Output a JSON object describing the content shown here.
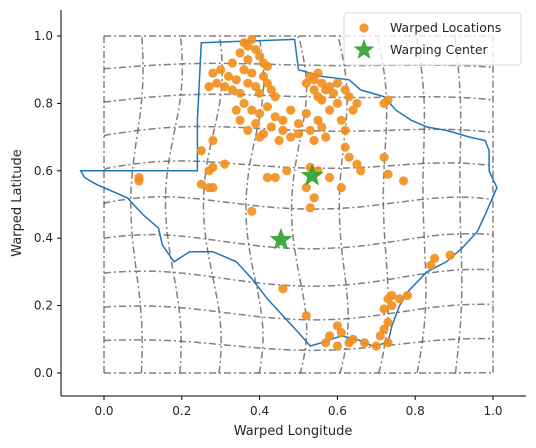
{
  "chart_data": {
    "type": "scatter",
    "title": "",
    "xlabel": "Warped Longitude",
    "ylabel": "Warped Latitude",
    "xlim": [
      -0.115,
      1.09
    ],
    "ylim": [
      -0.06,
      1.08
    ],
    "xticks": [
      0.0,
      0.2,
      0.4,
      0.6,
      0.8,
      1.0
    ],
    "yticks": [
      0.0,
      0.2,
      0.4,
      0.6,
      0.8,
      1.0
    ],
    "tick_labels_x": [
      "0.0",
      "0.2",
      "0.4",
      "0.6",
      "0.8",
      "1.0"
    ],
    "tick_labels_y": [
      "0.0",
      "0.2",
      "0.4",
      "0.6",
      "0.8",
      "1.0"
    ],
    "grid": false,
    "legend_position": "top-right",
    "series": [
      {
        "name": "Warped Locations",
        "kind": "scatter",
        "marker": "circle",
        "color": "#f28e1c",
        "points": [
          [
            0.36,
            0.98
          ],
          [
            0.37,
            0.97
          ],
          [
            0.38,
            0.99
          ],
          [
            0.35,
            0.95
          ],
          [
            0.4,
            0.94
          ],
          [
            0.33,
            0.92
          ],
          [
            0.37,
            0.93
          ],
          [
            0.39,
            0.96
          ],
          [
            0.41,
            0.92
          ],
          [
            0.42,
            0.91
          ],
          [
            0.28,
            0.89
          ],
          [
            0.3,
            0.9
          ],
          [
            0.32,
            0.88
          ],
          [
            0.34,
            0.87
          ],
          [
            0.36,
            0.9
          ],
          [
            0.38,
            0.89
          ],
          [
            0.29,
            0.86
          ],
          [
            0.27,
            0.85
          ],
          [
            0.31,
            0.85
          ],
          [
            0.33,
            0.84
          ],
          [
            0.35,
            0.83
          ],
          [
            0.37,
            0.86
          ],
          [
            0.39,
            0.85
          ],
          [
            0.4,
            0.83
          ],
          [
            0.42,
            0.86
          ],
          [
            0.41,
            0.88
          ],
          [
            0.43,
            0.84
          ],
          [
            0.44,
            0.82
          ],
          [
            0.36,
            0.8
          ],
          [
            0.38,
            0.78
          ],
          [
            0.4,
            0.77
          ],
          [
            0.42,
            0.79
          ],
          [
            0.44,
            0.76
          ],
          [
            0.46,
            0.75
          ],
          [
            0.48,
            0.78
          ],
          [
            0.5,
            0.74
          ],
          [
            0.52,
            0.77
          ],
          [
            0.53,
            0.72
          ],
          [
            0.55,
            0.75
          ],
          [
            0.56,
            0.73
          ],
          [
            0.58,
            0.78
          ],
          [
            0.6,
            0.8
          ],
          [
            0.61,
            0.75
          ],
          [
            0.62,
            0.72
          ],
          [
            0.57,
            0.7
          ],
          [
            0.54,
            0.69
          ],
          [
            0.5,
            0.71
          ],
          [
            0.48,
            0.7
          ],
          [
            0.46,
            0.72
          ],
          [
            0.45,
            0.69
          ],
          [
            0.43,
            0.73
          ],
          [
            0.41,
            0.71
          ],
          [
            0.4,
            0.7
          ],
          [
            0.39,
            0.74
          ],
          [
            0.37,
            0.72
          ],
          [
            0.35,
            0.75
          ],
          [
            0.34,
            0.78
          ],
          [
            0.53,
            0.88
          ],
          [
            0.54,
            0.87
          ],
          [
            0.55,
            0.89
          ],
          [
            0.56,
            0.86
          ],
          [
            0.57,
            0.84
          ],
          [
            0.58,
            0.85
          ],
          [
            0.59,
            0.83
          ],
          [
            0.54,
            0.84
          ],
          [
            0.55,
            0.82
          ],
          [
            0.52,
            0.86
          ],
          [
            0.6,
            0.86
          ],
          [
            0.62,
            0.84
          ],
          [
            0.63,
            0.82
          ],
          [
            0.65,
            0.8
          ],
          [
            0.64,
            0.78
          ],
          [
            0.56,
            0.81
          ],
          [
            0.62,
            0.67
          ],
          [
            0.63,
            0.64
          ],
          [
            0.65,
            0.62
          ],
          [
            0.66,
            0.6
          ],
          [
            0.61,
            0.55
          ],
          [
            0.58,
            0.58
          ],
          [
            0.55,
            0.6
          ],
          [
            0.53,
            0.61
          ],
          [
            0.52,
            0.55
          ],
          [
            0.54,
            0.52
          ],
          [
            0.47,
            0.6
          ],
          [
            0.44,
            0.58
          ],
          [
            0.42,
            0.58
          ],
          [
            0.72,
            0.64
          ],
          [
            0.73,
            0.59
          ],
          [
            0.77,
            0.57
          ],
          [
            0.31,
            0.62
          ],
          [
            0.28,
            0.61
          ],
          [
            0.27,
            0.6
          ],
          [
            0.25,
            0.56
          ],
          [
            0.27,
            0.55
          ],
          [
            0.28,
            0.55
          ],
          [
            0.25,
            0.66
          ],
          [
            0.28,
            0.69
          ],
          [
            0.38,
            0.48
          ],
          [
            0.53,
            0.49
          ],
          [
            0.09,
            0.58
          ],
          [
            0.09,
            0.57
          ],
          [
            0.73,
            0.81
          ],
          [
            0.72,
            0.8
          ],
          [
            0.46,
            0.25
          ],
          [
            0.52,
            0.17
          ],
          [
            0.85,
            0.34
          ],
          [
            0.84,
            0.32
          ],
          [
            0.89,
            0.35
          ],
          [
            0.74,
            0.23
          ],
          [
            0.73,
            0.22
          ],
          [
            0.72,
            0.19
          ],
          [
            0.73,
            0.15
          ],
          [
            0.72,
            0.13
          ],
          [
            0.71,
            0.11
          ],
          [
            0.73,
            0.09
          ],
          [
            0.7,
            0.08
          ],
          [
            0.67,
            0.09
          ],
          [
            0.64,
            0.1
          ],
          [
            0.61,
            0.12
          ],
          [
            0.6,
            0.14
          ],
          [
            0.58,
            0.11
          ],
          [
            0.57,
            0.09
          ],
          [
            0.6,
            0.08
          ],
          [
            0.63,
            0.09
          ],
          [
            0.76,
            0.22
          ],
          [
            0.78,
            0.23
          ],
          [
            0.74,
            0.2
          ]
        ]
      },
      {
        "name": "Warping Center",
        "kind": "scatter",
        "marker": "star",
        "color": "#2ca02c",
        "points": [
          [
            0.535,
            0.585
          ],
          [
            0.455,
            0.395
          ]
        ]
      }
    ],
    "overlays": [
      {
        "kind": "texas-outline",
        "color": "#1f77b4",
        "points": [
          [
            0.25,
            0.98
          ],
          [
            0.49,
            0.99
          ],
          [
            0.5,
            0.9
          ],
          [
            0.56,
            0.88
          ],
          [
            0.63,
            0.87
          ],
          [
            0.66,
            0.84
          ],
          [
            0.72,
            0.82
          ],
          [
            0.75,
            0.78
          ],
          [
            0.79,
            0.75
          ],
          [
            0.83,
            0.73
          ],
          [
            0.88,
            0.72
          ],
          [
            0.94,
            0.7
          ],
          [
            0.98,
            0.69
          ],
          [
            0.99,
            0.66
          ],
          [
            0.99,
            0.6
          ],
          [
            1.01,
            0.55
          ],
          [
            0.98,
            0.47
          ],
          [
            0.96,
            0.42
          ],
          [
            0.92,
            0.37
          ],
          [
            0.88,
            0.33
          ],
          [
            0.83,
            0.3
          ],
          [
            0.78,
            0.24
          ],
          [
            0.76,
            0.2
          ],
          [
            0.74,
            0.14
          ],
          [
            0.73,
            0.09
          ],
          [
            0.69,
            0.08
          ],
          [
            0.65,
            0.1
          ],
          [
            0.61,
            0.11
          ],
          [
            0.56,
            0.09
          ],
          [
            0.53,
            0.08
          ],
          [
            0.5,
            0.12
          ],
          [
            0.46,
            0.17
          ],
          [
            0.42,
            0.22
          ],
          [
            0.38,
            0.28
          ],
          [
            0.34,
            0.33
          ],
          [
            0.28,
            0.36
          ],
          [
            0.22,
            0.36
          ],
          [
            0.18,
            0.33
          ],
          [
            0.15,
            0.38
          ],
          [
            0.14,
            0.43
          ],
          [
            0.1,
            0.47
          ],
          [
            0.06,
            0.52
          ],
          [
            -0.02,
            0.56
          ],
          [
            -0.05,
            0.58
          ],
          [
            -0.06,
            0.6
          ],
          [
            0.05,
            0.6
          ],
          [
            0.14,
            0.6
          ],
          [
            0.24,
            0.6
          ],
          [
            0.24,
            0.75
          ],
          [
            0.25,
            0.98
          ]
        ]
      },
      {
        "kind": "warped-grid",
        "color": "#555555",
        "rows": 11,
        "cols": 11,
        "x_range": [
          0.0,
          1.0
        ],
        "y_range": [
          0.0,
          1.0
        ],
        "warp_center": [
          0.49,
          0.47
        ]
      }
    ]
  }
}
